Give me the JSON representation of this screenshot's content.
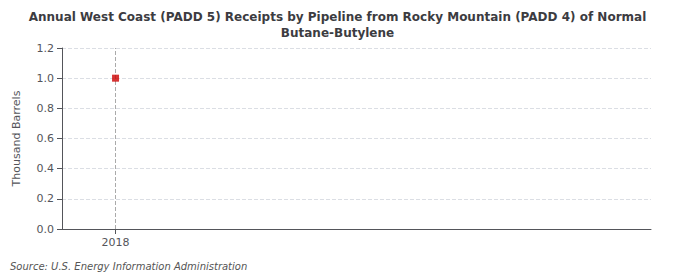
{
  "chart_data": {
    "type": "scatter",
    "title": "Annual West Coast (PADD 5) Receipts by Pipeline from Rocky Mountain (PADD 4) of Normal\nButane-Butylene",
    "ylabel": "Thousand Barrels",
    "annotations": [
      "Source: U.S. Energy Information Administration"
    ],
    "x": [
      2018
    ],
    "values": [
      1.0
    ],
    "color": "#cc0000",
    "marker": "square",
    "xlim": [
      2017.6,
      2022.0
    ],
    "xticks": [
      2018
    ],
    "ylim": [
      0.0,
      1.2
    ],
    "yticks": [
      {
        "value": 0,
        "label": "0.0"
      },
      0.2,
      0.4,
      0.6,
      0.8,
      {
        "value": 1,
        "label": "1.0"
      },
      1.2
    ],
    "grid": true,
    "vline": 2018
  }
}
